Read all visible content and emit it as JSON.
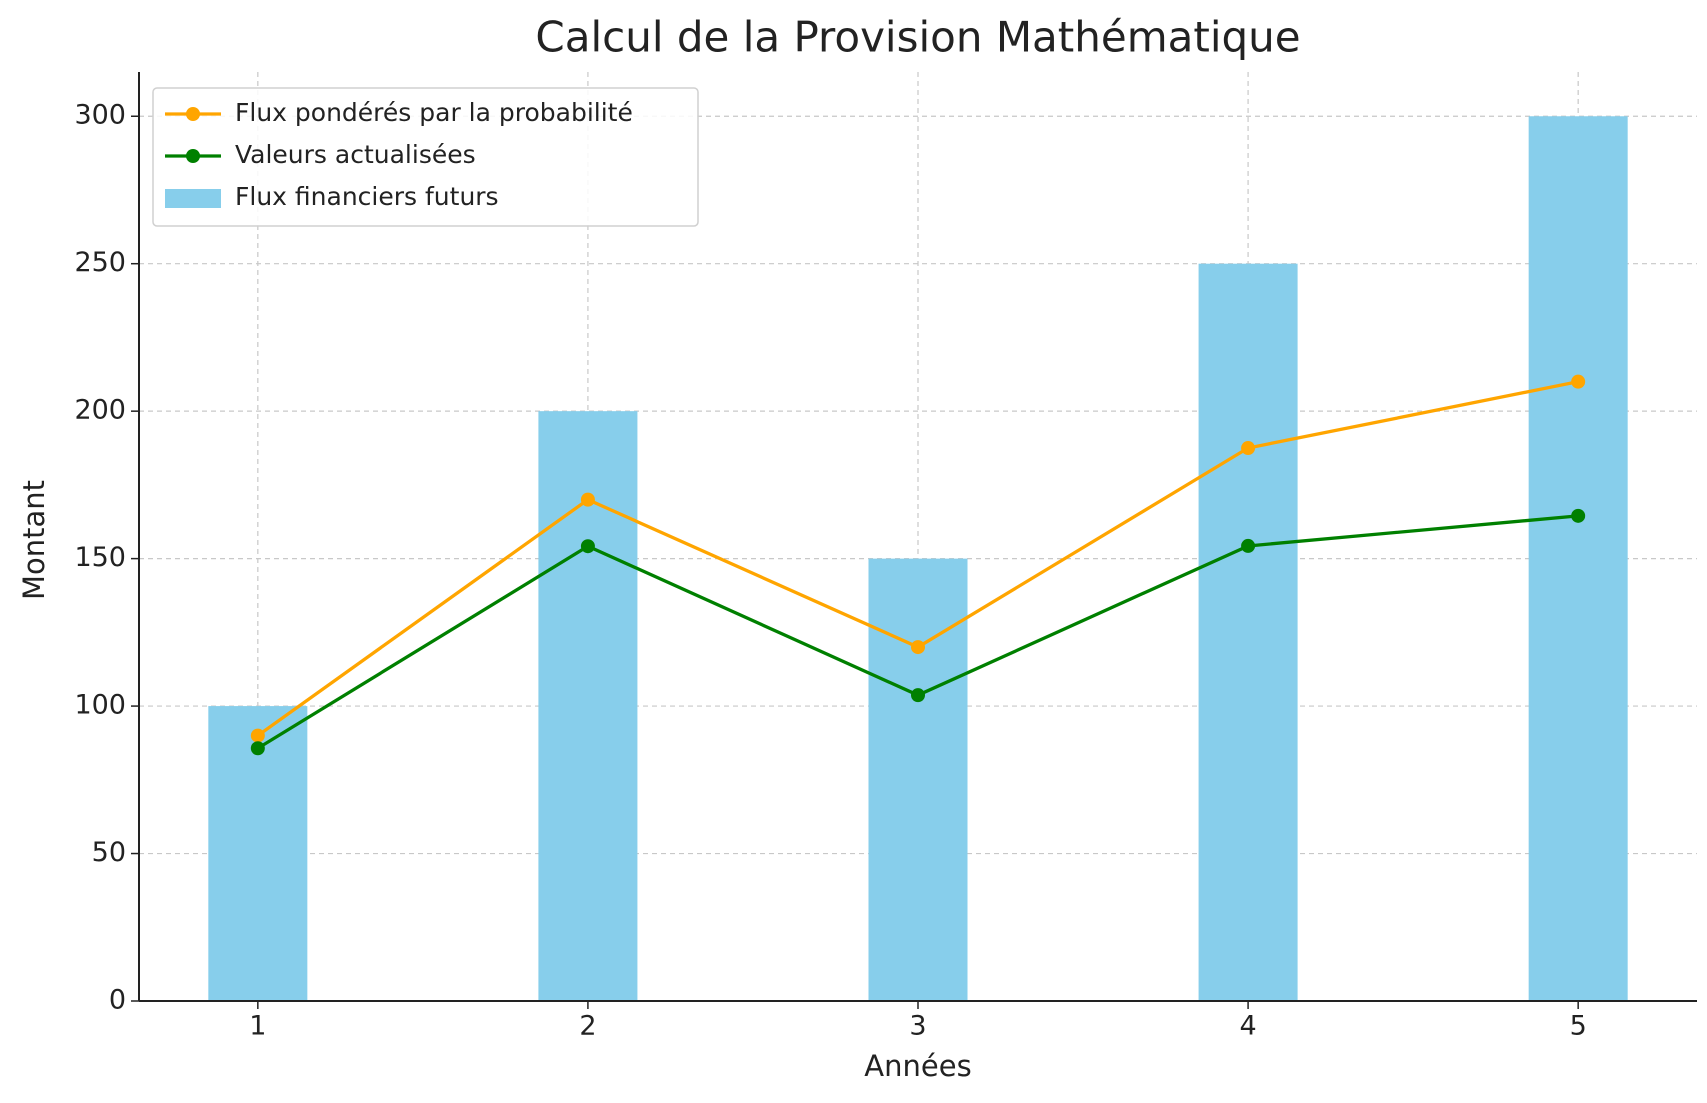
{
  "chart_data": {
    "type": "bar",
    "title": "Calcul de la Provision Mathématique",
    "x_label": "Années",
    "y_label": "Montant",
    "x": [
      1,
      2,
      3,
      4,
      5
    ],
    "series": [
      {
        "name": "Flux pondérés par la probabilité",
        "type": "line",
        "color": "#ffa500",
        "values": [
          90,
          170,
          120,
          187.5,
          210
        ]
      },
      {
        "name": "Valeurs actualisées",
        "type": "line",
        "color": "#008000",
        "values": [
          85.7,
          154.2,
          103.7,
          154.3,
          164.5
        ]
      },
      {
        "name": "Flux financiers futurs",
        "type": "bar",
        "color": "#87ceeb",
        "values": [
          100,
          200,
          150,
          250,
          300
        ]
      }
    ],
    "xlim": [
      0.64,
      5.36
    ],
    "xticks": [
      1,
      2,
      3,
      4,
      5
    ],
    "ylim": [
      0,
      315
    ],
    "yticks": [
      0,
      50,
      100,
      150,
      200,
      250,
      300
    ],
    "grid": true,
    "legend": "upper left"
  }
}
